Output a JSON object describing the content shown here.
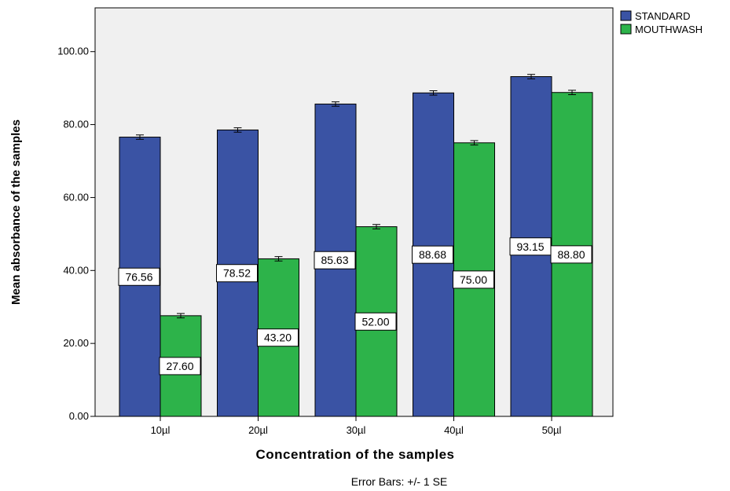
{
  "chart_data": {
    "type": "bar",
    "title": "",
    "xlabel": "Concentration of the samples",
    "ylabel": "Mean absorbance of the samples",
    "ylim": [
      0,
      112
    ],
    "yticks": [
      "0.00",
      "20.00",
      "40.00",
      "60.00",
      "80.00",
      "100.00"
    ],
    "ytick_values": [
      0,
      20,
      40,
      60,
      80,
      100
    ],
    "categories": [
      "10µl",
      "20µl",
      "30µl",
      "40µl",
      "50µl"
    ],
    "series": [
      {
        "name": "STANDARD",
        "color": "#3a53a4",
        "values": [
          76.56,
          78.52,
          85.63,
          88.68,
          93.15
        ],
        "labels": [
          "76.56",
          "78.52",
          "85.63",
          "88.68",
          "93.15"
        ],
        "se": [
          0.6,
          0.6,
          0.6,
          0.6,
          0.6
        ]
      },
      {
        "name": "MOUTHWASH",
        "color": "#2db34a",
        "values": [
          27.6,
          43.2,
          52.0,
          75.0,
          88.8
        ],
        "labels": [
          "27.60",
          "43.20",
          "52.00",
          "75.00",
          "88.80"
        ],
        "se": [
          0.6,
          0.6,
          0.6,
          0.6,
          0.6
        ]
      }
    ],
    "note": "Error Bars: +/- 1 SE",
    "legend_position": "top-right",
    "plot_background": "#f0f0f0",
    "grid": false
  }
}
